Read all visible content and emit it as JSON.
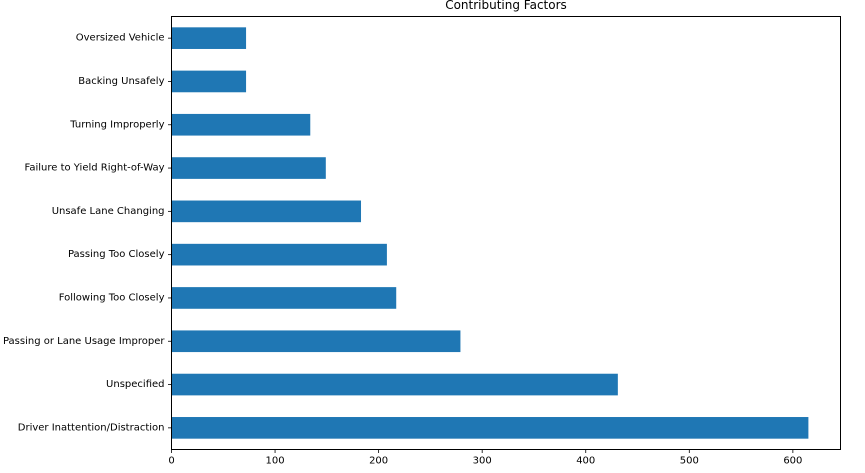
{
  "chart_data": {
    "type": "bar",
    "orientation": "horizontal",
    "title": "Contributing Factors",
    "xlabel": "",
    "ylabel": "",
    "categories": [
      "Driver Inattention/Distraction",
      "Unspecified",
      "Passing or Lane Usage Improper",
      "Following Too Closely",
      "Passing Too Closely",
      "Unsafe Lane Changing",
      "Failure to Yield Right-of-Way",
      "Turning Improperly",
      "Backing Unsafely",
      "Oversized Vehicle"
    ],
    "values": [
      615,
      431,
      279,
      217,
      208,
      183,
      149,
      134,
      72,
      72
    ],
    "xlim": [
      0,
      646
    ],
    "xticks": [
      0,
      100,
      200,
      300,
      400,
      500,
      600
    ],
    "grid": false,
    "legend": "none",
    "bar_color": "#1f77b4"
  }
}
